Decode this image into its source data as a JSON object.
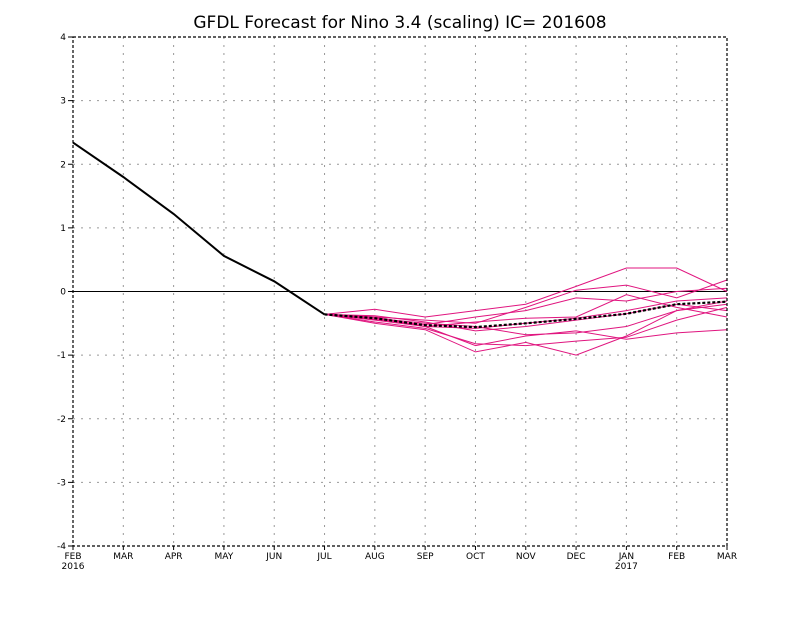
{
  "chart_data": {
    "type": "line",
    "title": "GFDL Forecast for Nino 3.4 (scaling) IC= 201608",
    "xlabel": "",
    "ylabel": "",
    "ylim": [
      -4,
      4
    ],
    "y_ticks": [
      4,
      3,
      2,
      1,
      0,
      -1,
      -2,
      -3,
      -4
    ],
    "categories": [
      "FEB",
      "MAR",
      "APR",
      "MAY",
      "JUN",
      "JUL",
      "AUG",
      "SEP",
      "OCT",
      "NOV",
      "DEC",
      "JAN",
      "FEB",
      "MAR"
    ],
    "year_labels": [
      {
        "index": 0,
        "label": "2016"
      },
      {
        "index": 11,
        "label": "2017"
      }
    ],
    "grid": true,
    "zero_line": true,
    "colors": {
      "observed": "#000000",
      "members": "#e0157f",
      "ensemble_mean": "#000000",
      "grid": "#999999"
    },
    "observed": {
      "x_index": [
        0,
        1,
        2,
        3,
        4,
        5
      ],
      "values": [
        2.34,
        1.8,
        1.22,
        0.56,
        0.16,
        -0.36
      ]
    },
    "members": [
      {
        "x_index": [
          5,
          6,
          7,
          8,
          9,
          10,
          11,
          12,
          13
        ],
        "values": [
          -0.36,
          -0.42,
          -0.55,
          -0.58,
          -0.5,
          -0.42,
          -0.3,
          -0.15,
          -0.1
        ]
      },
      {
        "x_index": [
          5,
          6,
          7,
          8,
          9,
          10,
          11,
          12,
          13
        ],
        "values": [
          -0.36,
          -0.28,
          -0.4,
          -0.3,
          -0.2,
          0.08,
          0.37,
          0.37,
          0.0
        ]
      },
      {
        "x_index": [
          5,
          6,
          7,
          8,
          9,
          10,
          11,
          12,
          13
        ],
        "values": [
          -0.36,
          -0.5,
          -0.6,
          -0.95,
          -0.8,
          -1.0,
          -0.7,
          -0.3,
          -0.2
        ]
      },
      {
        "x_index": [
          5,
          6,
          7,
          8,
          9,
          10,
          11,
          12,
          13
        ],
        "values": [
          -0.36,
          -0.45,
          -0.55,
          -0.85,
          -0.7,
          -0.62,
          -0.75,
          -0.65,
          -0.6
        ]
      },
      {
        "x_index": [
          5,
          6,
          7,
          8,
          9,
          10,
          11,
          12,
          13
        ],
        "values": [
          -0.36,
          -0.4,
          -0.45,
          -0.5,
          -0.25,
          0.02,
          0.1,
          -0.1,
          0.18
        ]
      },
      {
        "x_index": [
          5,
          6,
          7,
          8,
          9,
          10,
          11,
          12,
          13
        ],
        "values": [
          -0.36,
          -0.38,
          -0.48,
          -0.62,
          -0.55,
          -0.45,
          -0.35,
          -0.2,
          -0.3
        ]
      },
      {
        "x_index": [
          5,
          6,
          7,
          8,
          9,
          10,
          11,
          12,
          13
        ],
        "values": [
          -0.36,
          -0.44,
          -0.52,
          -0.4,
          -0.3,
          -0.1,
          -0.15,
          0.0,
          0.05
        ]
      },
      {
        "x_index": [
          5,
          6,
          7,
          8,
          9,
          10,
          11,
          12,
          13
        ],
        "values": [
          -0.36,
          -0.48,
          -0.58,
          -0.82,
          -0.85,
          -0.78,
          -0.72,
          -0.45,
          -0.25
        ]
      },
      {
        "x_index": [
          5,
          6,
          7,
          8,
          9,
          10,
          11,
          12,
          13
        ],
        "values": [
          -0.36,
          -0.42,
          -0.5,
          -0.55,
          -0.68,
          -0.65,
          -0.55,
          -0.3,
          -0.15
        ]
      },
      {
        "x_index": [
          5,
          6,
          7,
          8,
          9,
          10,
          11,
          12,
          13
        ],
        "values": [
          -0.36,
          -0.4,
          -0.55,
          -0.48,
          -0.42,
          -0.4,
          -0.05,
          -0.25,
          -0.4
        ]
      }
    ],
    "ensemble_mean": {
      "x_index": [
        5,
        6,
        7,
        8,
        9,
        10,
        11,
        12,
        13
      ],
      "values": [
        -0.36,
        -0.42,
        -0.53,
        -0.56,
        -0.5,
        -0.43,
        -0.35,
        -0.2,
        -0.16
      ]
    }
  }
}
